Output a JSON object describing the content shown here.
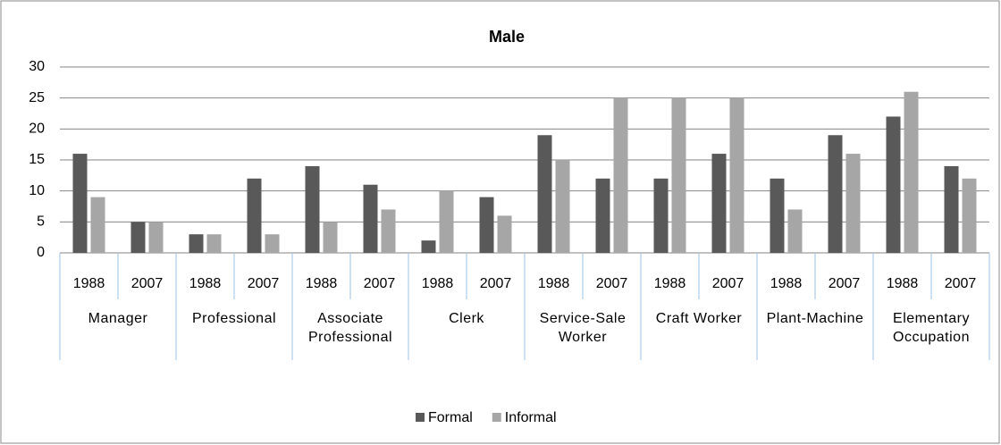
{
  "chart_data": {
    "type": "bar",
    "title": "Male",
    "categories": [
      "1988",
      "2007",
      "1988",
      "2007",
      "1988",
      "2007",
      "1988",
      "2007",
      "1988",
      "2007",
      "1988",
      "2007",
      "1988",
      "2007",
      "1988",
      "2007"
    ],
    "groups": [
      "Manager",
      "Professional",
      "Associate Professional",
      "Clerk",
      "Service-Sale Worker",
      "Craft Worker",
      "Plant-Machine",
      "Elementary Occupation"
    ],
    "series": [
      {
        "name": "Formal",
        "color": "#595959",
        "values": [
          16,
          5,
          3,
          12,
          14,
          11,
          2,
          9,
          19,
          12,
          12,
          16,
          12,
          19,
          22,
          14
        ]
      },
      {
        "name": "Informal",
        "color": "#a6a6a6",
        "values": [
          9,
          5,
          3,
          3,
          5,
          7,
          10,
          6,
          15,
          25,
          25,
          25,
          7,
          16,
          26,
          12
        ]
      }
    ],
    "ylim": [
      0,
      30
    ],
    "yticks": [
      0,
      5,
      10,
      15,
      20,
      25,
      30
    ],
    "grid": true,
    "legend": "bottom"
  }
}
